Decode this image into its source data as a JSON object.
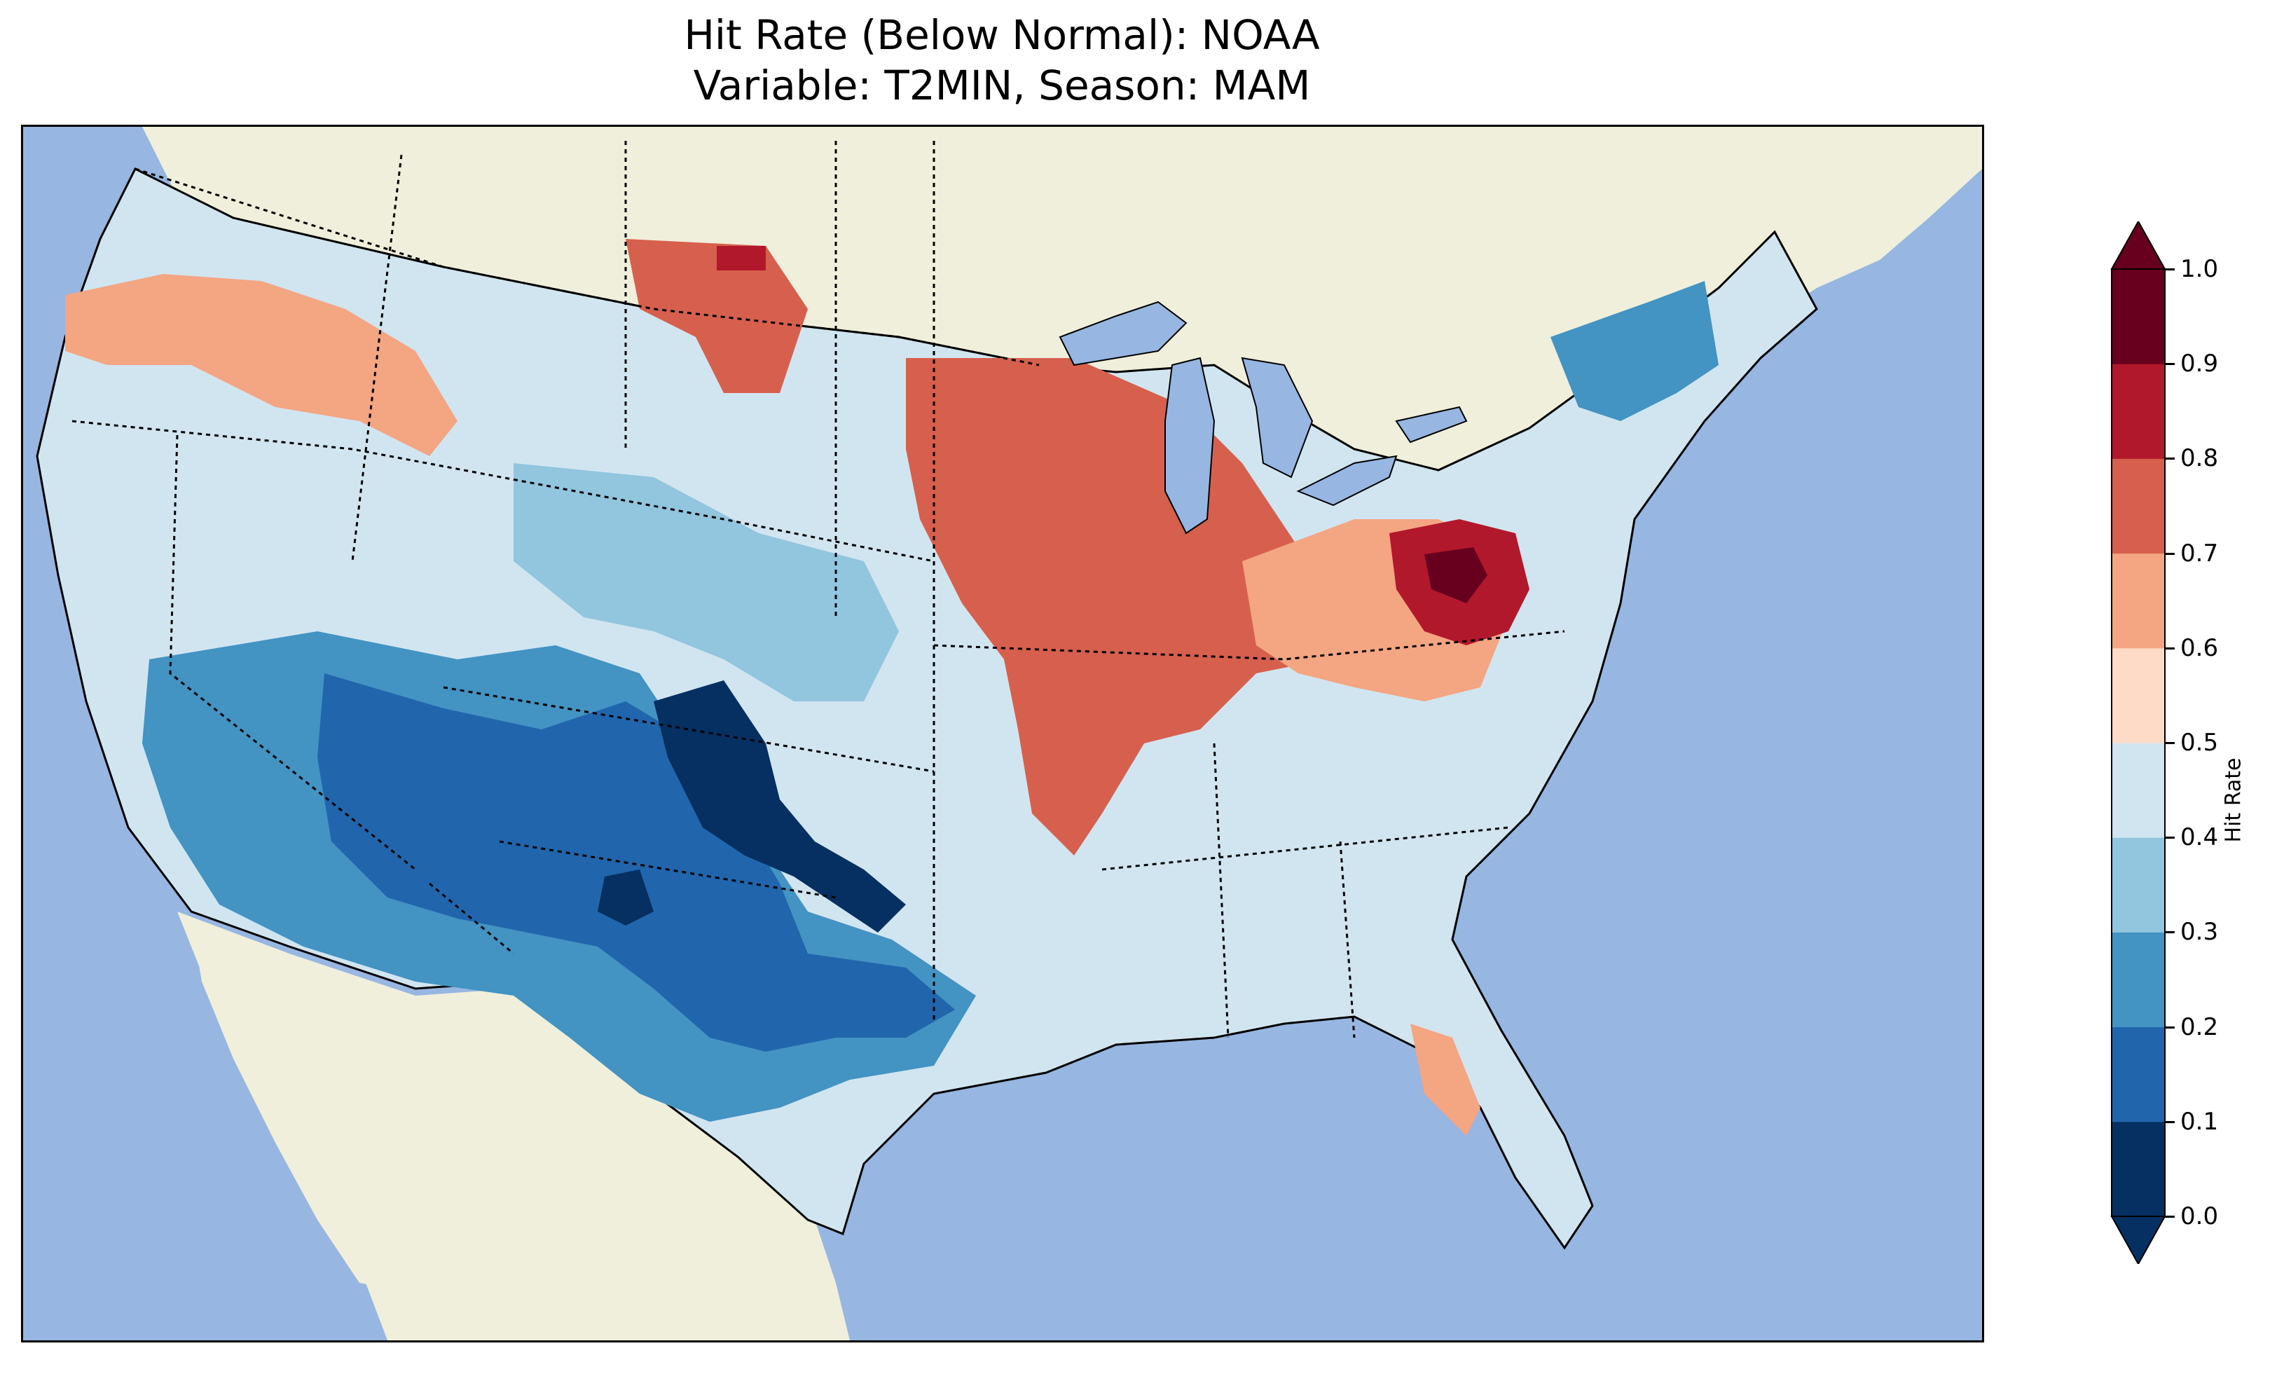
{
  "title": {
    "line1": "Hit Rate (Below Normal): NOAA",
    "line2": "Variable: T2MIN, Season: MAM"
  },
  "colors": {
    "ocean": "#97b6e1",
    "land": "#efefdb",
    "lakes": "#97b6e1"
  },
  "colorbar": {
    "label": "Hit Rate",
    "bins": [
      {
        "range": "0.0-0.1",
        "color": "#053061"
      },
      {
        "range": "0.1-0.2",
        "color": "#2166ac"
      },
      {
        "range": "0.2-0.3",
        "color": "#4393c3"
      },
      {
        "range": "0.3-0.4",
        "color": "#92c5de"
      },
      {
        "range": "0.4-0.5",
        "color": "#d1e5f0"
      },
      {
        "range": "0.5-0.6",
        "color": "#fddbc7"
      },
      {
        "range": "0.6-0.7",
        "color": "#f4a582"
      },
      {
        "range": "0.7-0.8",
        "color": "#d6604d"
      },
      {
        "range": "0.8-0.9",
        "color": "#b2182b"
      },
      {
        "range": "0.9-1.0",
        "color": "#67001f"
      }
    ],
    "ticks": [
      "0.0",
      "0.1",
      "0.2",
      "0.3",
      "0.4",
      "0.5",
      "0.6",
      "0.7",
      "0.8",
      "0.9",
      "1.0"
    ],
    "extend": "both"
  }
}
